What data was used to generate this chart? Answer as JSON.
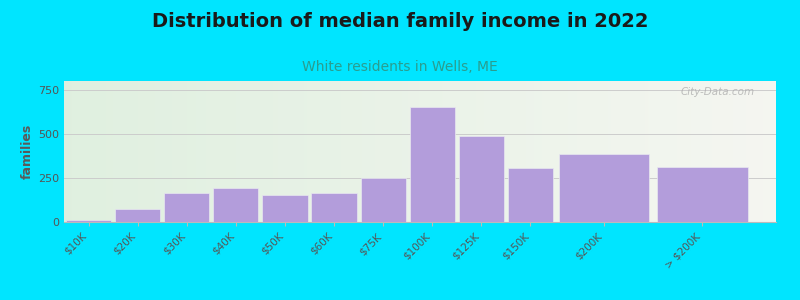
{
  "title": "Distribution of median family income in 2022",
  "subtitle": "White residents in Wells, ME",
  "ylabel": "families",
  "categories": [
    "$10K",
    "$20K",
    "$30K",
    "$40K",
    "$50K",
    "$60K",
    "$75K",
    "$100K",
    "$125K",
    "$150K",
    "$200K",
    "> $200K"
  ],
  "values": [
    10,
    75,
    165,
    195,
    155,
    165,
    250,
    650,
    490,
    305,
    385,
    310
  ],
  "bar_color": "#b39ddb",
  "bar_edge_color": "#e8e8f0",
  "background_outer": "#00e5ff",
  "title_fontsize": 14,
  "subtitle_fontsize": 10,
  "subtitle_color": "#2a9d8f",
  "ylabel_color": "#5a5a5a",
  "tick_color": "#555555",
  "grid_color": "#cccccc",
  "yticks": [
    0,
    250,
    500,
    750
  ],
  "ylim": [
    0,
    800
  ],
  "watermark": "City-Data.com",
  "bar_widths": [
    1,
    1,
    1,
    1,
    1,
    1,
    1,
    1,
    1,
    1,
    2,
    2
  ],
  "bar_positions": [
    0.5,
    1.5,
    2.5,
    3.5,
    4.5,
    5.5,
    6.5,
    7.5,
    8.5,
    9.5,
    11,
    13
  ]
}
